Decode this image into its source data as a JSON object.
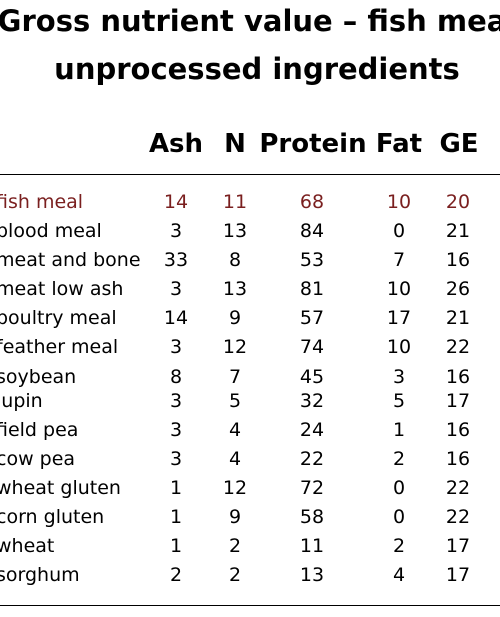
{
  "title": {
    "line1": "Gross nutrient value – fish meal",
    "line2": "unprocessed ingredients"
  },
  "columns": [
    "Ash",
    "N",
    "Protein",
    "Fat",
    "GE"
  ],
  "highlight_color": "#7a1f1f",
  "rows": [
    {
      "name": "fish meal",
      "values": [
        "14",
        "11",
        "68",
        "10",
        "20"
      ],
      "highlight": true
    },
    {
      "name": "blood meal",
      "values": [
        "3",
        "13",
        "84",
        "0",
        "21"
      ]
    },
    {
      "name": "meat and bone",
      "values": [
        "33",
        "8",
        "53",
        "7",
        "16"
      ]
    },
    {
      "name": "meat low ash",
      "values": [
        "3",
        "13",
        "81",
        "10",
        "26"
      ]
    },
    {
      "name": "poultry meal",
      "values": [
        "14",
        "9",
        "57",
        "17",
        "21"
      ]
    },
    {
      "name": "feather meal",
      "values": [
        "3",
        "12",
        "74",
        "10",
        "22"
      ]
    },
    {
      "name": "soybean",
      "values": [
        "8",
        "7",
        "45",
        "3",
        "16"
      ]
    },
    {
      "name": "lupin",
      "values": [
        "3",
        "5",
        "32",
        "5",
        "17"
      ]
    },
    {
      "name": "field pea",
      "values": [
        "3",
        "4",
        "24",
        "1",
        "16"
      ]
    },
    {
      "name": "cow pea",
      "values": [
        "3",
        "4",
        "22",
        "2",
        "16"
      ]
    },
    {
      "name": "wheat gluten",
      "values": [
        "1",
        "12",
        "72",
        "0",
        "22"
      ]
    },
    {
      "name": "corn gluten",
      "values": [
        "1",
        "9",
        "58",
        "0",
        "22"
      ]
    },
    {
      "name": "wheat",
      "values": [
        "1",
        "2",
        "11",
        "2",
        "17"
      ]
    },
    {
      "name": "sorghum",
      "values": [
        "2",
        "2",
        "13",
        "4",
        "17"
      ]
    }
  ]
}
